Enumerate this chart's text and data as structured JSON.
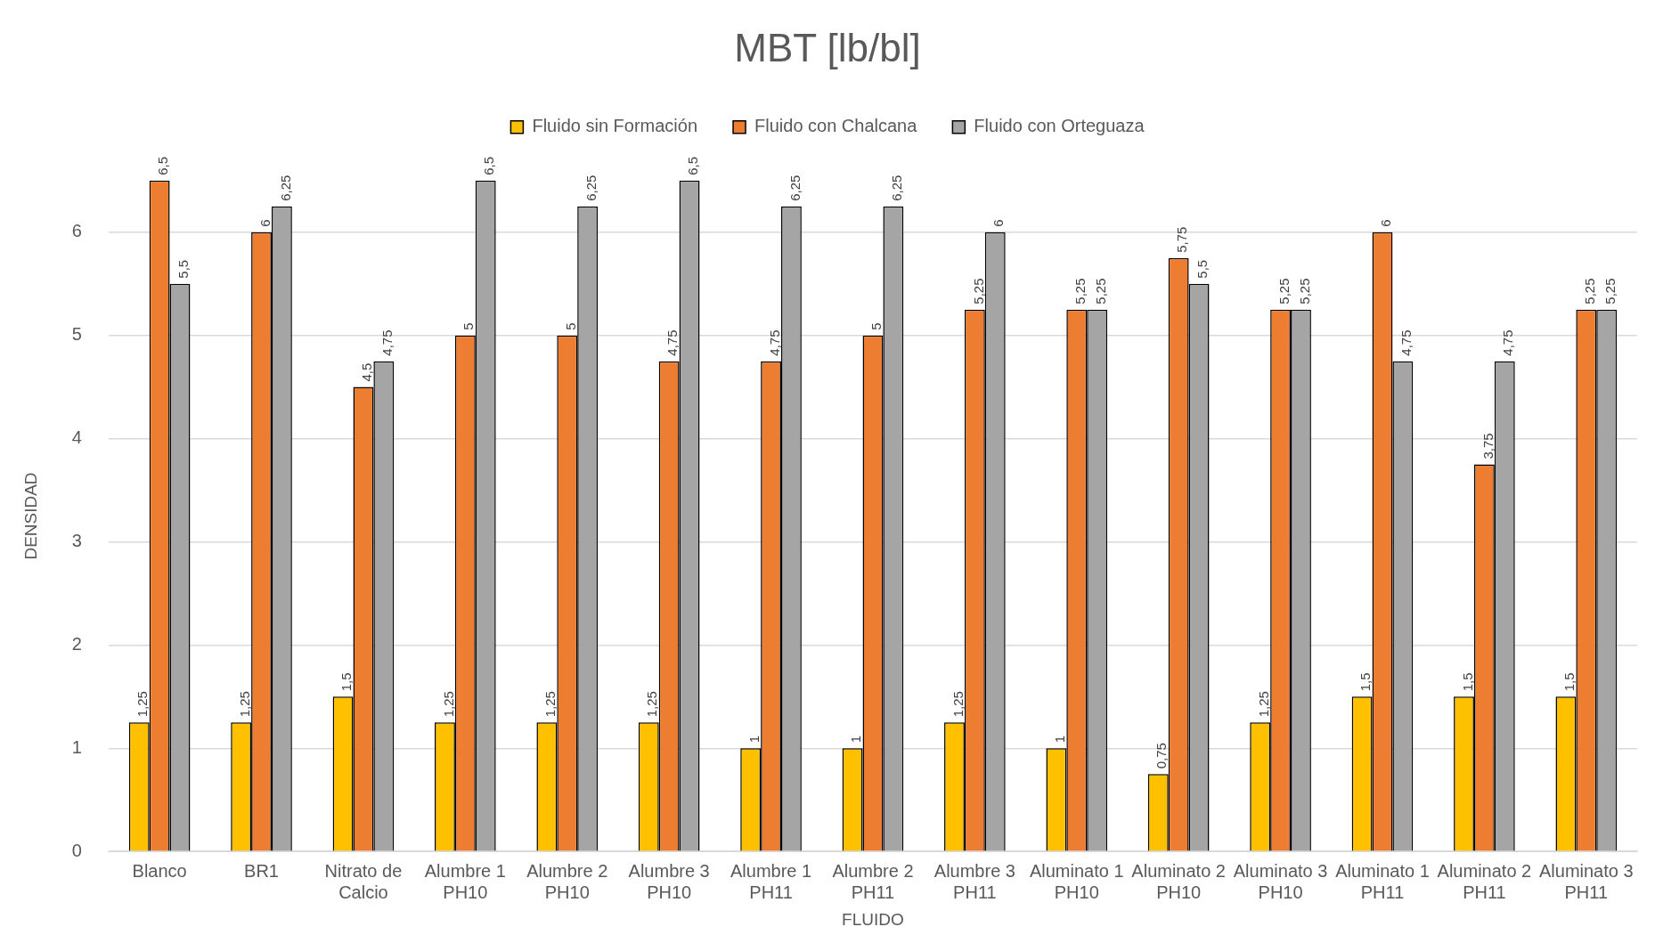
{
  "chart_data": {
    "type": "bar",
    "title": "MBT [lb/bl]",
    "xlabel": "FLUIDO",
    "ylabel": "DENSIDAD",
    "categories": [
      "Blanco",
      "BR1",
      "Nitrato de Calcio",
      "Alumbre 1 PH10",
      "Alumbre 2 PH10",
      "Alumbre 3 PH10",
      "Alumbre 1 PH11",
      "Alumbre 2 PH11",
      "Alumbre 3 PH11",
      "Aluminato 1 PH10",
      "Aluminato 2 PH10",
      "Aluminato 3 PH10",
      "Aluminato 1 PH11",
      "Aluminato 2 PH11",
      "Aluminato 3 PH11"
    ],
    "series": [
      {
        "name": "Fluido sin Formación",
        "color": "#ffc000",
        "values": [
          1.25,
          1.25,
          1.5,
          1.25,
          1.25,
          1.25,
          1,
          1,
          1.25,
          1,
          0.75,
          1.25,
          1.5,
          1.5,
          1.5
        ],
        "value_labels": [
          "1,25",
          "1,25",
          "1,5",
          "1,25",
          "1,25",
          "1,25",
          "1",
          "1",
          "1,25",
          "1",
          "0,75",
          "1,25",
          "1,5",
          "1,5",
          "1,5"
        ]
      },
      {
        "name": "Fluido con Chalcana",
        "color": "#ed7d31",
        "values": [
          6.5,
          6,
          4.5,
          5,
          5,
          4.75,
          4.75,
          5,
          5.25,
          5.25,
          5.75,
          5.25,
          6,
          3.75,
          5.25
        ],
        "value_labels": [
          "6,5",
          "6",
          "4,5",
          "5",
          "5",
          "4,75",
          "4,75",
          "5",
          "5,25",
          "5,25",
          "5,75",
          "5,25",
          "6",
          "3,75",
          "5,25"
        ]
      },
      {
        "name": "Fluido con Orteguaza",
        "color": "#a5a5a5",
        "values": [
          5.5,
          6.25,
          4.75,
          6.5,
          6.25,
          6.5,
          6.25,
          6.25,
          6,
          5.25,
          5.5,
          5.25,
          4.75,
          4.75,
          5.25
        ],
        "value_labels": [
          "5,5",
          "6,25",
          "4,75",
          "6,5",
          "6,25",
          "6,5",
          "6,25",
          "6,25",
          "6",
          "5,25",
          "5,5",
          "5,25",
          "4,75",
          "4,75",
          "5,25"
        ]
      }
    ],
    "ylim": [
      0,
      6.5
    ],
    "yticks": [
      0,
      1,
      2,
      3,
      4,
      5,
      6
    ],
    "grid": "y",
    "legend": "top"
  }
}
